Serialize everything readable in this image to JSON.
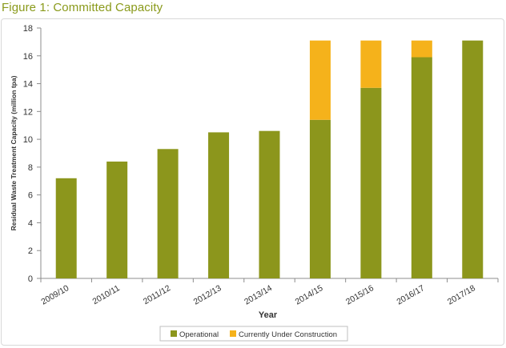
{
  "figure_title": "Figure 1: Committed Capacity",
  "chart_data": {
    "type": "bar",
    "stacked": true,
    "title": "",
    "xlabel": "Year",
    "ylabel": "Residual Waste Treatment Capacity (million tpa)",
    "categories": [
      "2009/10",
      "2010/11",
      "2011/12",
      "2012/13",
      "2013/14",
      "2014/15",
      "2015/16",
      "2016/17",
      "2017/18"
    ],
    "series": [
      {
        "name": "Operational",
        "color": "#8c961c",
        "values": [
          7.2,
          8.4,
          9.3,
          10.5,
          10.6,
          11.4,
          13.7,
          15.9,
          17.1
        ]
      },
      {
        "name": "Currently Under Construction",
        "color": "#f5b21b",
        "values": [
          0,
          0,
          0,
          0,
          0,
          5.7,
          3.4,
          1.2,
          0
        ]
      }
    ],
    "ylim": [
      0,
      18
    ],
    "yticks": [
      "0",
      "2",
      "4",
      "6",
      "8",
      "10",
      "12",
      "14",
      "16",
      "18"
    ],
    "grid": false,
    "legend_position": "bottom"
  }
}
